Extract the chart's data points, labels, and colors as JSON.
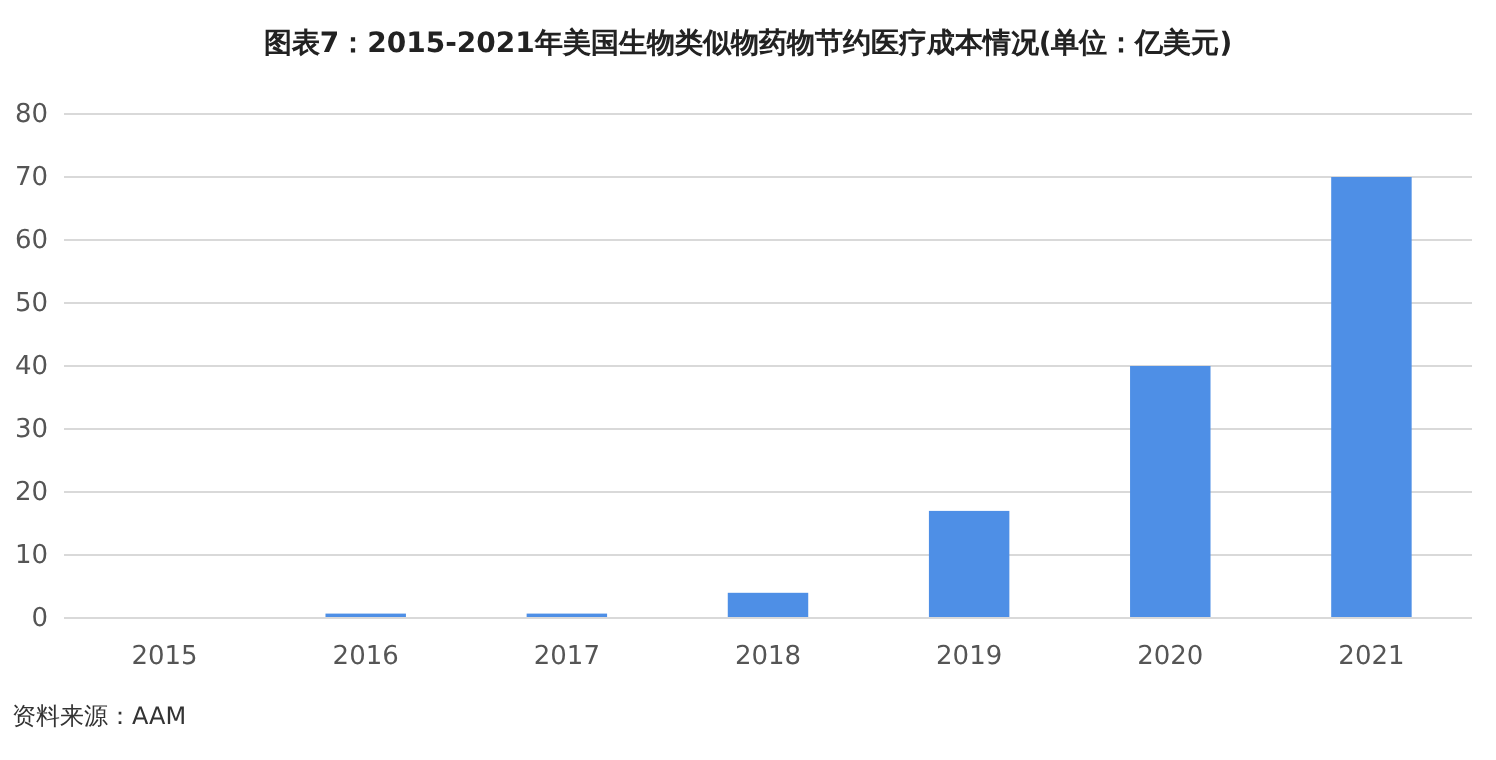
{
  "chart_data": {
    "type": "bar",
    "title": "图表7：2015-2021年美国生物类似物药物节约医疗成本情况(单位：亿美元)",
    "categories": [
      "2015",
      "2016",
      "2017",
      "2018",
      "2019",
      "2020",
      "2021"
    ],
    "values": [
      0,
      0.7,
      0.7,
      4,
      17,
      40,
      70
    ],
    "color": "#4e8fe6",
    "ylim": [
      0,
      80
    ],
    "yticks": [
      0,
      10,
      20,
      30,
      40,
      50,
      60,
      70,
      80
    ],
    "grid": "y",
    "annotations": [
      "资料来源：AAM"
    ]
  }
}
